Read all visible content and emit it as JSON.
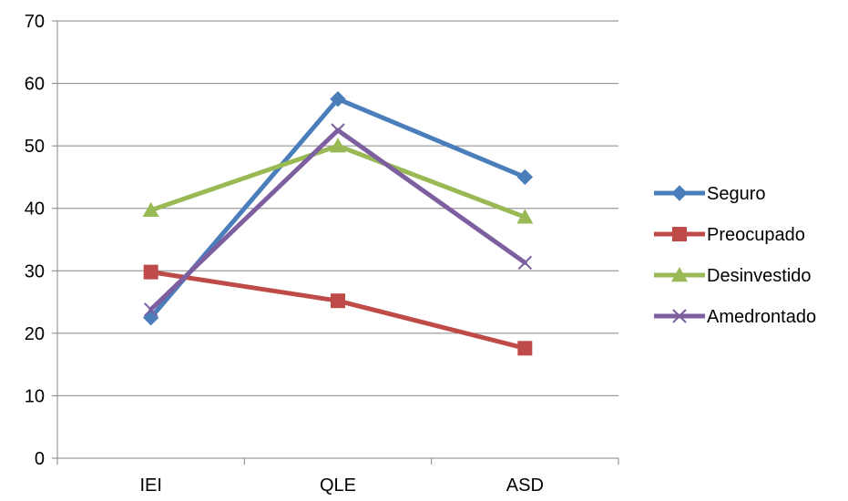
{
  "chart_data": {
    "type": "line",
    "title": "",
    "xlabel": "",
    "ylabel": "",
    "categories": [
      "IEI",
      "QLE",
      "ASD"
    ],
    "ylim": [
      0,
      70
    ],
    "yticks": [
      0,
      10,
      20,
      30,
      40,
      50,
      60,
      70
    ],
    "grid": true,
    "legend_position": "right",
    "series": [
      {
        "name": "Seguro",
        "values": [
          22.5,
          57.5,
          45
        ],
        "color": "#4a7ebb",
        "marker": "diamond"
      },
      {
        "name": "Preocupado",
        "values": [
          29.8,
          25.2,
          17.6
        ],
        "color": "#be4b48",
        "marker": "square"
      },
      {
        "name": "Desinvestido",
        "values": [
          39.7,
          50,
          38.6
        ],
        "color": "#98b954",
        "marker": "triangle"
      },
      {
        "name": "Amedrontado",
        "values": [
          23.8,
          52.5,
          31.3
        ],
        "color": "#7d5fa0",
        "marker": "x"
      }
    ]
  }
}
